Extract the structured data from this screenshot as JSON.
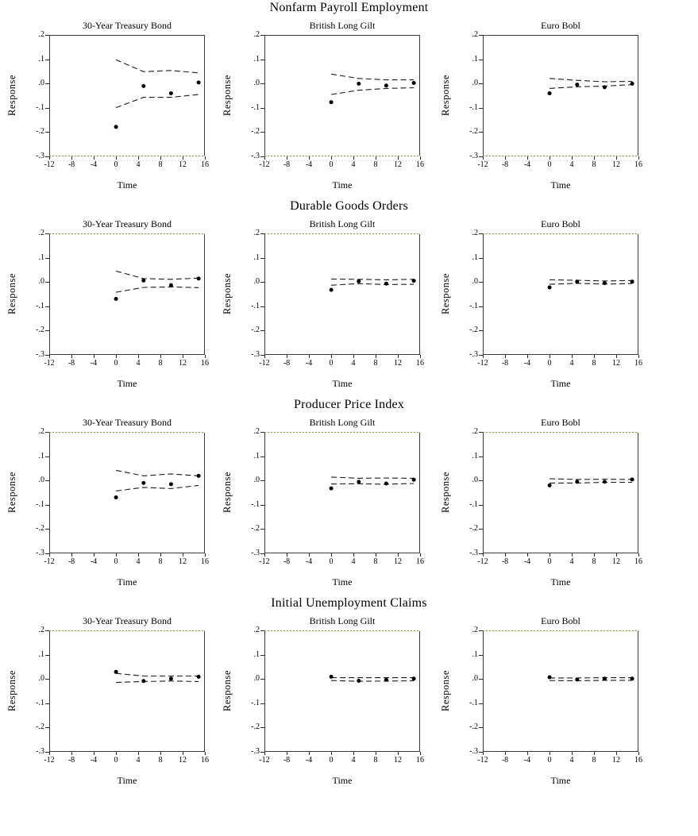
{
  "colors": {
    "background": "#ffffff",
    "ink": "#000000",
    "frame": "#3d3d35",
    "band_dash": "#1c1c1c",
    "point_fill": "#000000",
    "edge_dotted_olive": "#9a9148",
    "edge_dotted_faint_blue": "#bcc3d8"
  },
  "chart_data": {
    "type": "scatter",
    "description": "Grid of impulse-response charts: response dots with dashed upper/lower confidence bands",
    "xlabel": "Time",
    "ylabel": "Response",
    "xlim": [
      -12,
      16
    ],
    "ylim": [
      -0.3,
      0.2
    ],
    "x_tick_labels": [
      "-12",
      "-8",
      "-4",
      "0",
      "4",
      "8",
      "12",
      "16"
    ],
    "x_tick_values": [
      -12,
      -8,
      -4,
      0,
      4,
      8,
      12,
      16
    ],
    "y_tick_labels": [
      ".2",
      ".1",
      ".0",
      "-.1",
      "-.2",
      "-.3"
    ],
    "y_tick_values": [
      0.2,
      0.1,
      0.0,
      -0.1,
      -0.2,
      -0.3
    ],
    "x": [
      0,
      5,
      10,
      15
    ],
    "rows": [
      {
        "title": "Nonfarm Payroll Employment",
        "charts": [
          {
            "title": "30-Year Treasury Bond",
            "response": [
              -0.18,
              -0.01,
              -0.04,
              0.005
            ],
            "upper_band": [
              0.1,
              0.05,
              0.055,
              0.045
            ],
            "lower_band": [
              -0.1,
              -0.057,
              -0.057,
              -0.045
            ]
          },
          {
            "title": "British Long Gilt",
            "response": [
              -0.077,
              0.0,
              -0.008,
              0.003
            ],
            "upper_band": [
              0.04,
              0.022,
              0.016,
              0.016
            ],
            "lower_band": [
              -0.045,
              -0.027,
              -0.02,
              -0.017
            ]
          },
          {
            "title": "Euro Bobl",
            "response": [
              -0.04,
              -0.004,
              -0.015,
              0.0
            ],
            "upper_band": [
              0.022,
              0.014,
              0.008,
              0.01
            ],
            "lower_band": [
              -0.02,
              -0.013,
              -0.01,
              -0.004
            ]
          }
        ]
      },
      {
        "title": "Durable Goods Orders",
        "charts": [
          {
            "title": "30-Year Treasury Bond",
            "response": [
              -0.07,
              0.007,
              -0.013,
              0.015
            ],
            "upper_band": [
              0.046,
              0.015,
              0.012,
              0.017
            ],
            "lower_band": [
              -0.042,
              -0.022,
              -0.02,
              -0.023
            ]
          },
          {
            "title": "British Long Gilt",
            "response": [
              -0.032,
              0.004,
              -0.006,
              0.006
            ],
            "upper_band": [
              0.013,
              0.012,
              0.01,
              0.012
            ],
            "lower_band": [
              -0.013,
              -0.006,
              -0.01,
              -0.009
            ]
          },
          {
            "title": "Euro Bobl",
            "response": [
              -0.022,
              0.002,
              -0.004,
              0.002
            ],
            "upper_band": [
              0.01,
              0.008,
              0.005,
              0.007
            ],
            "lower_band": [
              -0.009,
              -0.005,
              -0.008,
              -0.006
            ]
          }
        ]
      },
      {
        "title": "Producer Price Index",
        "charts": [
          {
            "title": "30-Year Treasury Bond",
            "response": [
              -0.07,
              -0.01,
              -0.015,
              0.02
            ],
            "upper_band": [
              0.043,
              0.02,
              0.028,
              0.02
            ],
            "lower_band": [
              -0.043,
              -0.028,
              -0.033,
              -0.02
            ]
          },
          {
            "title": "British Long Gilt",
            "response": [
              -0.032,
              -0.005,
              -0.012,
              0.004
            ],
            "upper_band": [
              0.015,
              0.01,
              0.011,
              0.01
            ],
            "lower_band": [
              -0.014,
              -0.013,
              -0.015,
              -0.012
            ]
          },
          {
            "title": "Euro Bobl",
            "response": [
              -0.02,
              -0.005,
              -0.005,
              0.005
            ],
            "upper_band": [
              0.008,
              0.005,
              0.006,
              0.005
            ],
            "lower_band": [
              -0.01,
              -0.01,
              -0.007,
              -0.007
            ]
          }
        ]
      },
      {
        "title": "Initial Unemployment Claims",
        "charts": [
          {
            "title": "30-Year Treasury Bond",
            "response": [
              0.03,
              -0.008,
              0.002,
              0.01
            ],
            "upper_band": [
              0.024,
              0.013,
              0.013,
              0.013
            ],
            "lower_band": [
              -0.014,
              -0.01,
              -0.008,
              -0.01
            ]
          },
          {
            "title": "British Long Gilt",
            "response": [
              0.01,
              -0.007,
              -0.003,
              0.002
            ],
            "upper_band": [
              0.006,
              0.006,
              0.006,
              0.006
            ],
            "lower_band": [
              -0.006,
              -0.009,
              -0.008,
              -0.007
            ]
          },
          {
            "title": "Euro Bobl",
            "response": [
              0.008,
              -0.002,
              0.002,
              0.002
            ],
            "upper_band": [
              0.005,
              0.005,
              0.006,
              0.006
            ],
            "lower_band": [
              -0.006,
              -0.007,
              -0.005,
              -0.005
            ]
          }
        ]
      }
    ]
  }
}
